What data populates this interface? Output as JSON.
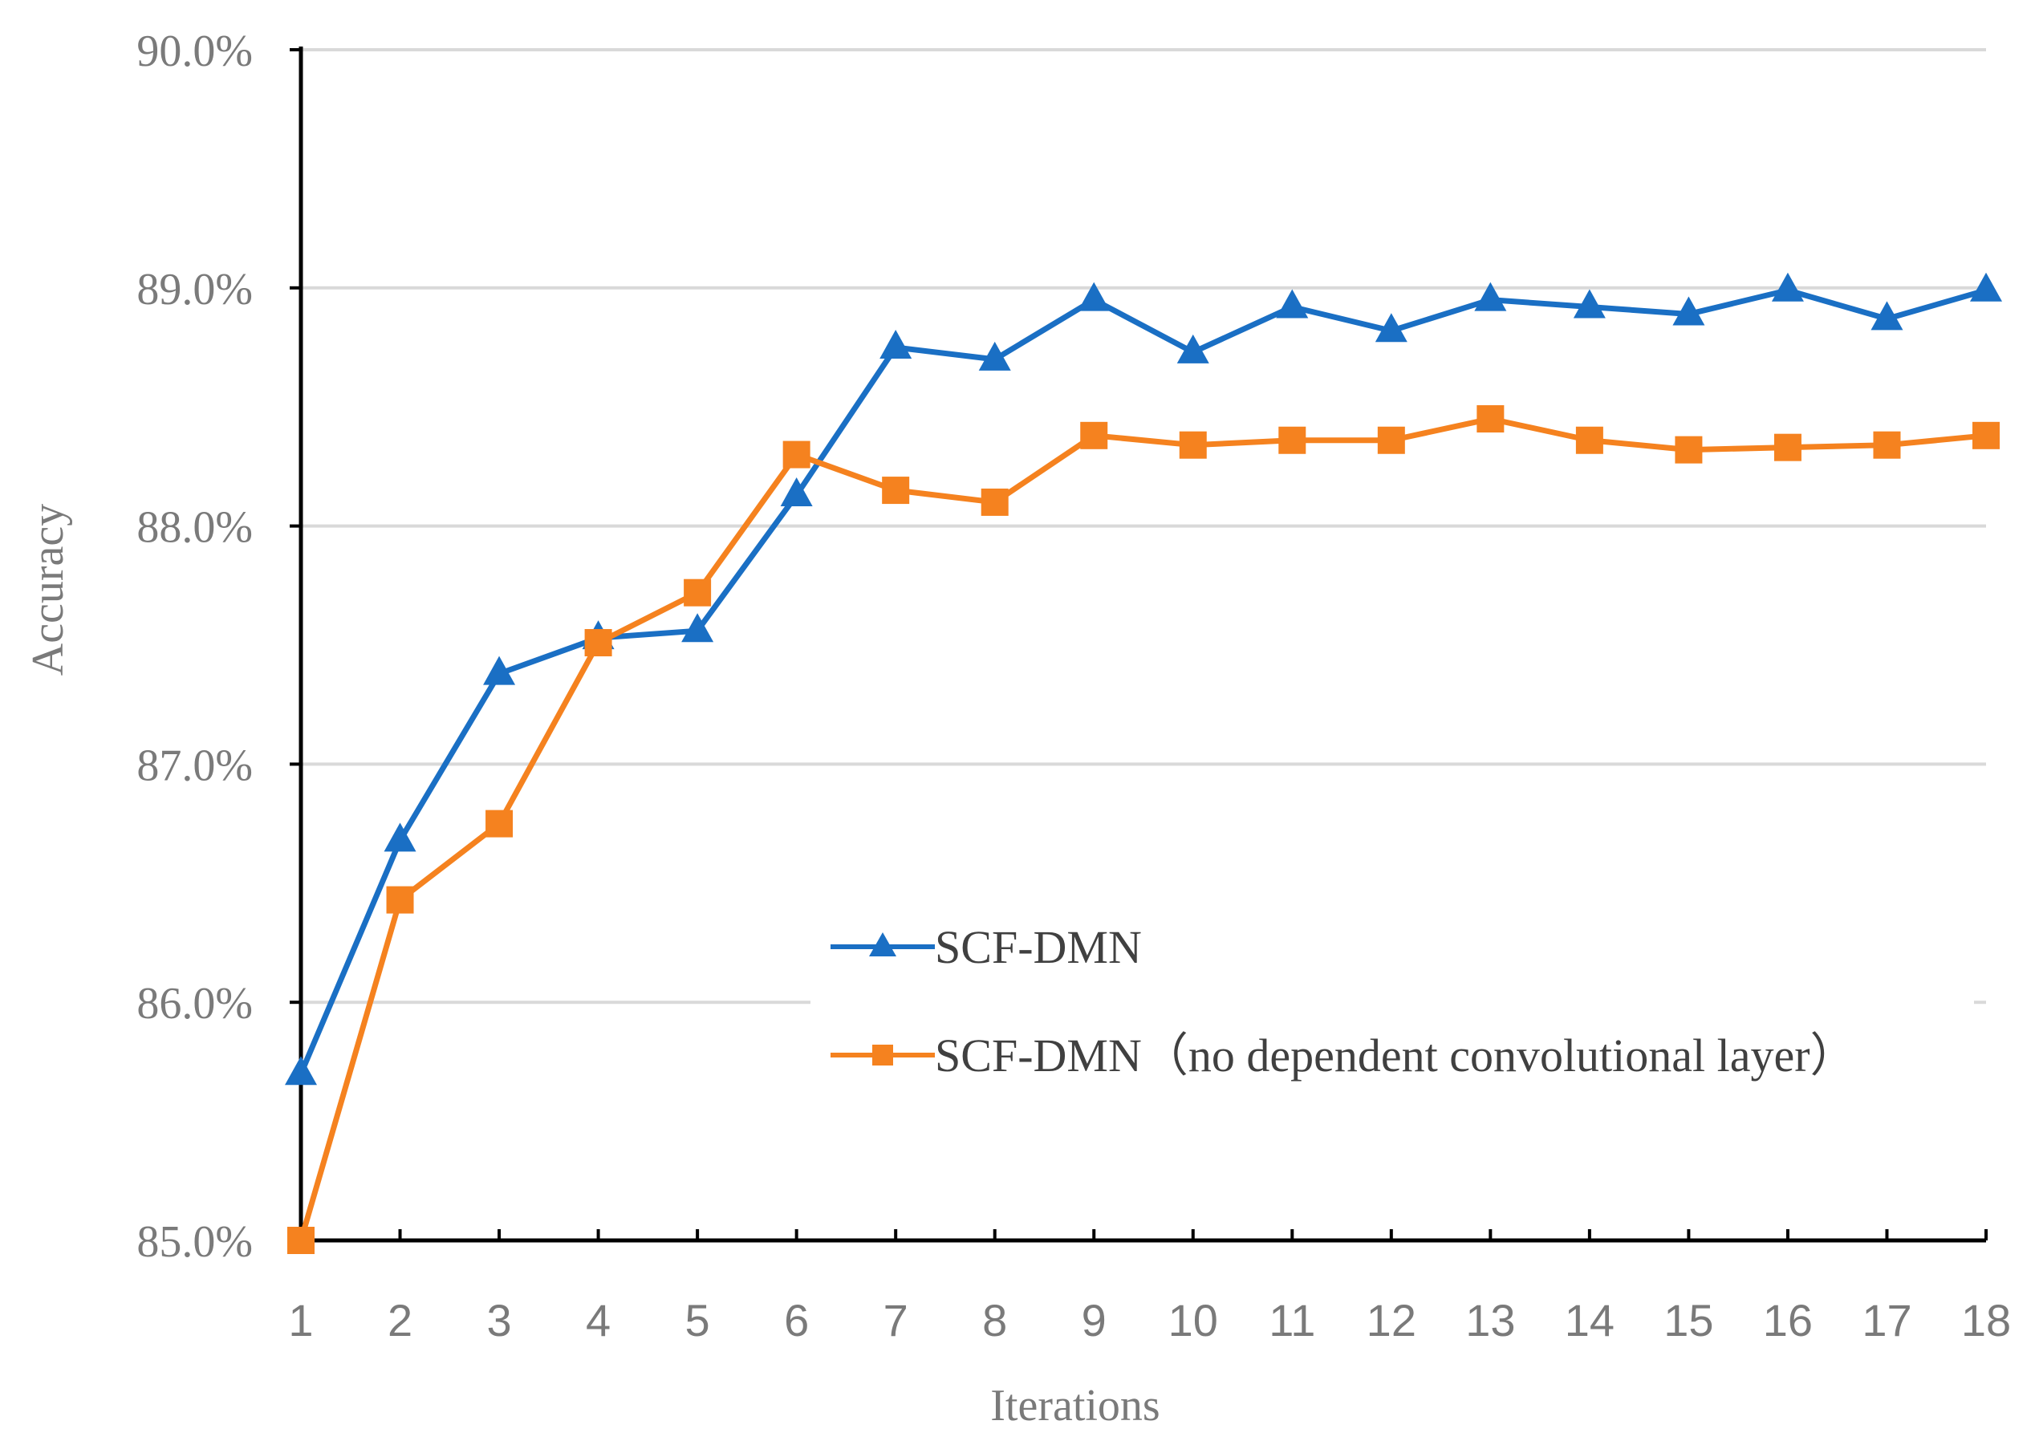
{
  "chart_data": {
    "type": "line",
    "title": "",
    "xlabel": "Iterations",
    "ylabel": "Accuracy",
    "ylim": [
      85.0,
      90.0
    ],
    "yticks": [
      85.0,
      86.0,
      87.0,
      88.0,
      89.0,
      90.0
    ],
    "ytick_labels": [
      "85.0%",
      "86.0%",
      "87.0%",
      "88.0%",
      "89.0%",
      "90.0%"
    ],
    "grid": "horizontal",
    "legend_position": "center-right",
    "categories": [
      "1",
      "2",
      "3",
      "4",
      "5",
      "6",
      "7",
      "8",
      "9",
      "10",
      "11",
      "12",
      "13",
      "14",
      "15",
      "16",
      "17",
      "18"
    ],
    "series": [
      {
        "name": "SCF-DMN",
        "color": "#1a6fc4",
        "marker": "triangle",
        "values": [
          85.7,
          86.68,
          87.38,
          87.53,
          87.56,
          88.13,
          88.75,
          88.7,
          88.95,
          88.73,
          88.92,
          88.82,
          88.95,
          88.92,
          88.89,
          88.99,
          88.87,
          88.99
        ]
      },
      {
        "name": "SCF-DMN（no dependent convolutional layer）",
        "color": "#f5821f",
        "marker": "square",
        "values": [
          85.0,
          86.43,
          86.75,
          87.51,
          87.72,
          88.3,
          88.15,
          88.1,
          88.38,
          88.34,
          88.36,
          88.36,
          88.45,
          88.36,
          88.32,
          88.33,
          88.34,
          88.38
        ]
      }
    ]
  }
}
